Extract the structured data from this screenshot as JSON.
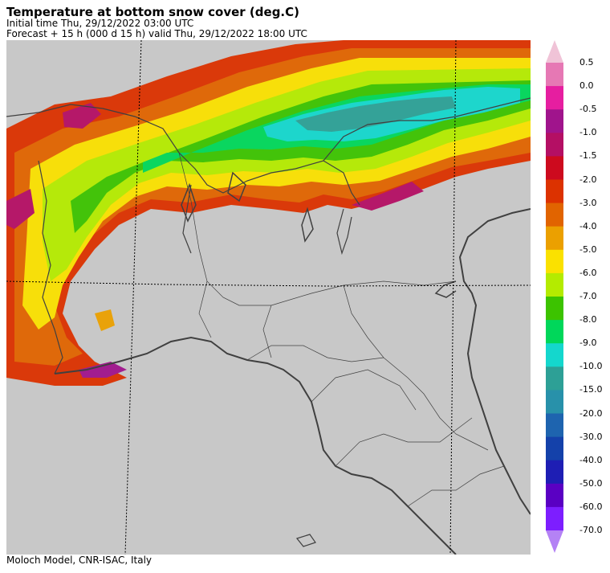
{
  "header": {
    "title": "Temperature at bottom snow cover (deg.C)",
    "initial_time": "Initial time  Thu, 29/12/2022  03:00 UTC",
    "forecast": "Forecast  +  15 h  (000 d 15 h)  valid Thu, 29/12/2022 18:00 UTC"
  },
  "footer": {
    "credit": "Moloch Model, CNR-ISAC, Italy"
  },
  "legend": {
    "labels": [
      "0.5",
      "0.0",
      "-0.5",
      "-1.0",
      "-1.5",
      "-2.0",
      "-3.0",
      "-4.0",
      "-5.0",
      "-6.0",
      "-7.0",
      "-8.0",
      "-9.0",
      "-10.0",
      "-15.0",
      "-20.0",
      "-30.0",
      "-40.0",
      "-50.0",
      "-60.0",
      "-70.0"
    ],
    "colors": [
      "#e678b4",
      "#e61ea0",
      "#a0148c",
      "#b40f64",
      "#cd0a1e",
      "#dc3200",
      "#e16400",
      "#eba000",
      "#fae100",
      "#b4eb00",
      "#3cc300",
      "#00d75a",
      "#14d7cd",
      "#2da096",
      "#2891aa",
      "#1e64af",
      "#1441aa",
      "#1e1eb4",
      "#5a00c3",
      "#7d1eff"
    ],
    "top_arrow_color": "#f0c3d7",
    "bottom_arrow_color": "#b482f5"
  },
  "map": {
    "background": "#c8c8c8",
    "border_color": "#404040"
  }
}
